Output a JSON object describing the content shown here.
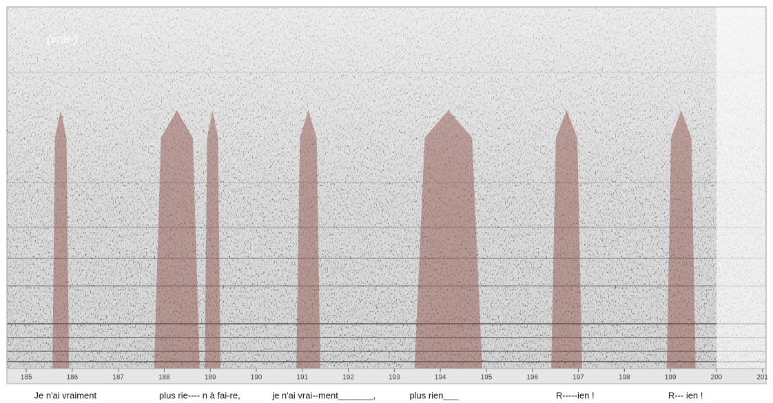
{
  "chart_data": {
    "type": "spectrogram",
    "annotation": "(vrai-)",
    "xlim": [
      184.58,
      201.08
    ],
    "xticks": [
      185,
      186,
      187,
      188,
      189,
      190,
      191,
      192,
      193,
      194,
      195,
      196,
      197,
      198,
      199,
      200,
      201
    ],
    "highlights": [
      [
        185.57,
        185.93
      ],
      [
        187.78,
        188.77
      ],
      [
        188.88,
        189.22
      ],
      [
        190.87,
        191.39
      ],
      [
        193.44,
        194.91
      ],
      [
        196.41,
        197.08
      ],
      [
        198.92,
        199.55
      ]
    ],
    "highlight_color": "#8a4a40",
    "lyrics": [
      {
        "text": "Je n'ai vraiment",
        "x": 185.85
      },
      {
        "text": "plus rie---- n à fai-re,",
        "x": 188.77
      },
      {
        "text": "je n'ai  vrai--ment_______,",
        "x": 191.47
      },
      {
        "text": "plus rien___",
        "x": 193.86
      },
      {
        "text": "R-----ien !",
        "x": 196.93
      },
      {
        "text": "R--- ien !",
        "x": 199.33
      }
    ]
  }
}
